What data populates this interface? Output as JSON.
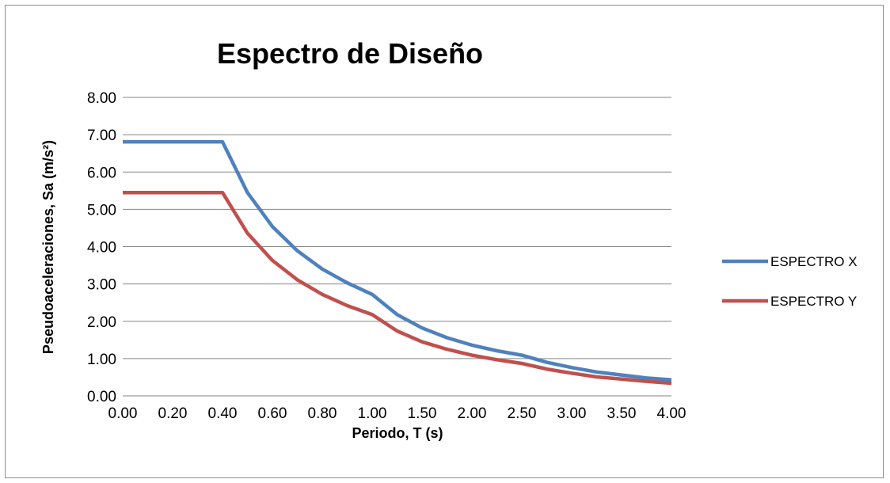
{
  "chart_data": {
    "type": "line",
    "title": "Espectro de Diseño",
    "xlabel": "Periodo, T (s)",
    "ylabel": "Pseudoaceleraciones, Sa (m/s²)",
    "ylim": [
      0,
      8
    ],
    "y_ticks": [
      "0.00",
      "1.00",
      "2.00",
      "3.00",
      "4.00",
      "5.00",
      "6.00",
      "7.00",
      "8.00"
    ],
    "x_ticks": [
      "0.00",
      "0.20",
      "0.40",
      "0.60",
      "0.80",
      "1.00",
      "1.50",
      "2.00",
      "2.50",
      "3.00",
      "3.50",
      "4.00"
    ],
    "x": [
      "0.00",
      "0.10",
      "0.20",
      "0.30",
      "0.40",
      "0.50",
      "0.60",
      "0.70",
      "0.80",
      "0.90",
      "1.00",
      "1.25",
      "1.50",
      "1.75",
      "2.00",
      "2.25",
      "2.50",
      "2.75",
      "3.00",
      "3.25",
      "3.50",
      "3.75",
      "4.00"
    ],
    "grid": true,
    "legend_position": "right",
    "series": [
      {
        "name": "ESPECTRO X",
        "color": "#4f81bd",
        "values": [
          6.81,
          6.81,
          6.81,
          6.81,
          6.81,
          5.45,
          4.54,
          3.89,
          3.4,
          3.03,
          2.72,
          2.18,
          1.82,
          1.56,
          1.36,
          1.21,
          1.09,
          0.9,
          0.76,
          0.64,
          0.56,
          0.48,
          0.43
        ]
      },
      {
        "name": "ESPECTRO Y",
        "color": "#c0504d",
        "values": [
          5.45,
          5.45,
          5.45,
          5.45,
          5.45,
          4.36,
          3.63,
          3.11,
          2.72,
          2.42,
          2.18,
          1.74,
          1.45,
          1.25,
          1.09,
          0.97,
          0.87,
          0.72,
          0.61,
          0.51,
          0.45,
          0.39,
          0.34
        ]
      }
    ]
  }
}
